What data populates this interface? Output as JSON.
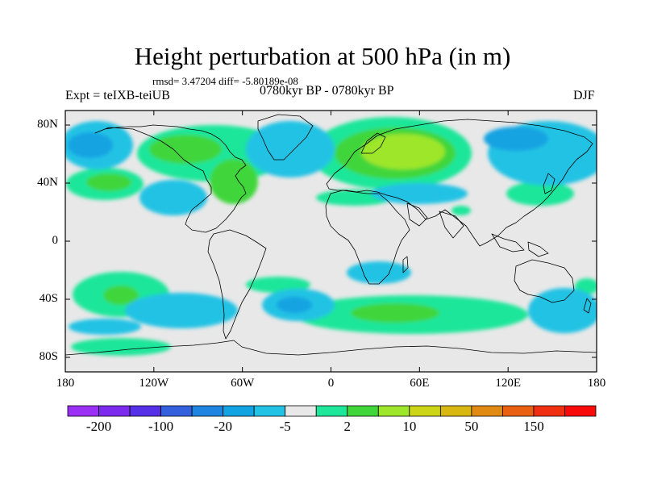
{
  "header": {
    "title": "Height perturbation at 500 hPa (in m)",
    "stats": "rmsd= 3.47204 diff= -5.80189e-08",
    "experiment": "Expt = teIXB-teiUB",
    "period": "0780kyr BP - 0780kyr BP",
    "season": "DJF"
  },
  "map": {
    "projection": "cylindrical equidistant",
    "lon_range": [
      -180,
      180
    ],
    "lat_range": [
      -90,
      90
    ],
    "lat_ticks": [
      {
        "value": 80,
        "label": "80N"
      },
      {
        "value": 40,
        "label": "40N"
      },
      {
        "value": 0,
        "label": "0"
      },
      {
        "value": -40,
        "label": "40S"
      },
      {
        "value": -80,
        "label": "80S"
      }
    ],
    "lon_ticks": [
      {
        "value": -180,
        "label": "180"
      },
      {
        "value": -120,
        "label": "120W"
      },
      {
        "value": -60,
        "label": "60W"
      },
      {
        "value": 0,
        "label": "0"
      },
      {
        "value": 60,
        "label": "60E"
      },
      {
        "value": 120,
        "label": "120E"
      },
      {
        "value": 180,
        "label": "180"
      }
    ],
    "background_color": "#e8e8e8",
    "coastline_color": "#000000"
  },
  "colorbar": {
    "colors": [
      "#9b30f5",
      "#7b2aee",
      "#5530e6",
      "#3460de",
      "#1e86e0",
      "#12a3e2",
      "#22c2e4",
      "#e8e8e8",
      "#1ee69a",
      "#3fd63a",
      "#9ee62a",
      "#cdd616",
      "#d8b810",
      "#e08a14",
      "#e86010",
      "#f02e10",
      "#f70a08"
    ],
    "labels": [
      {
        "after_box": 1,
        "text": "-200"
      },
      {
        "after_box": 3,
        "text": "-100"
      },
      {
        "after_box": 5,
        "text": "-20"
      },
      {
        "after_box": 7,
        "text": "-5"
      },
      {
        "after_box": 9,
        "text": "2"
      },
      {
        "after_box": 11,
        "text": "10"
      },
      {
        "after_box": 13,
        "text": "50"
      },
      {
        "after_box": 15,
        "text": "150"
      }
    ]
  }
}
